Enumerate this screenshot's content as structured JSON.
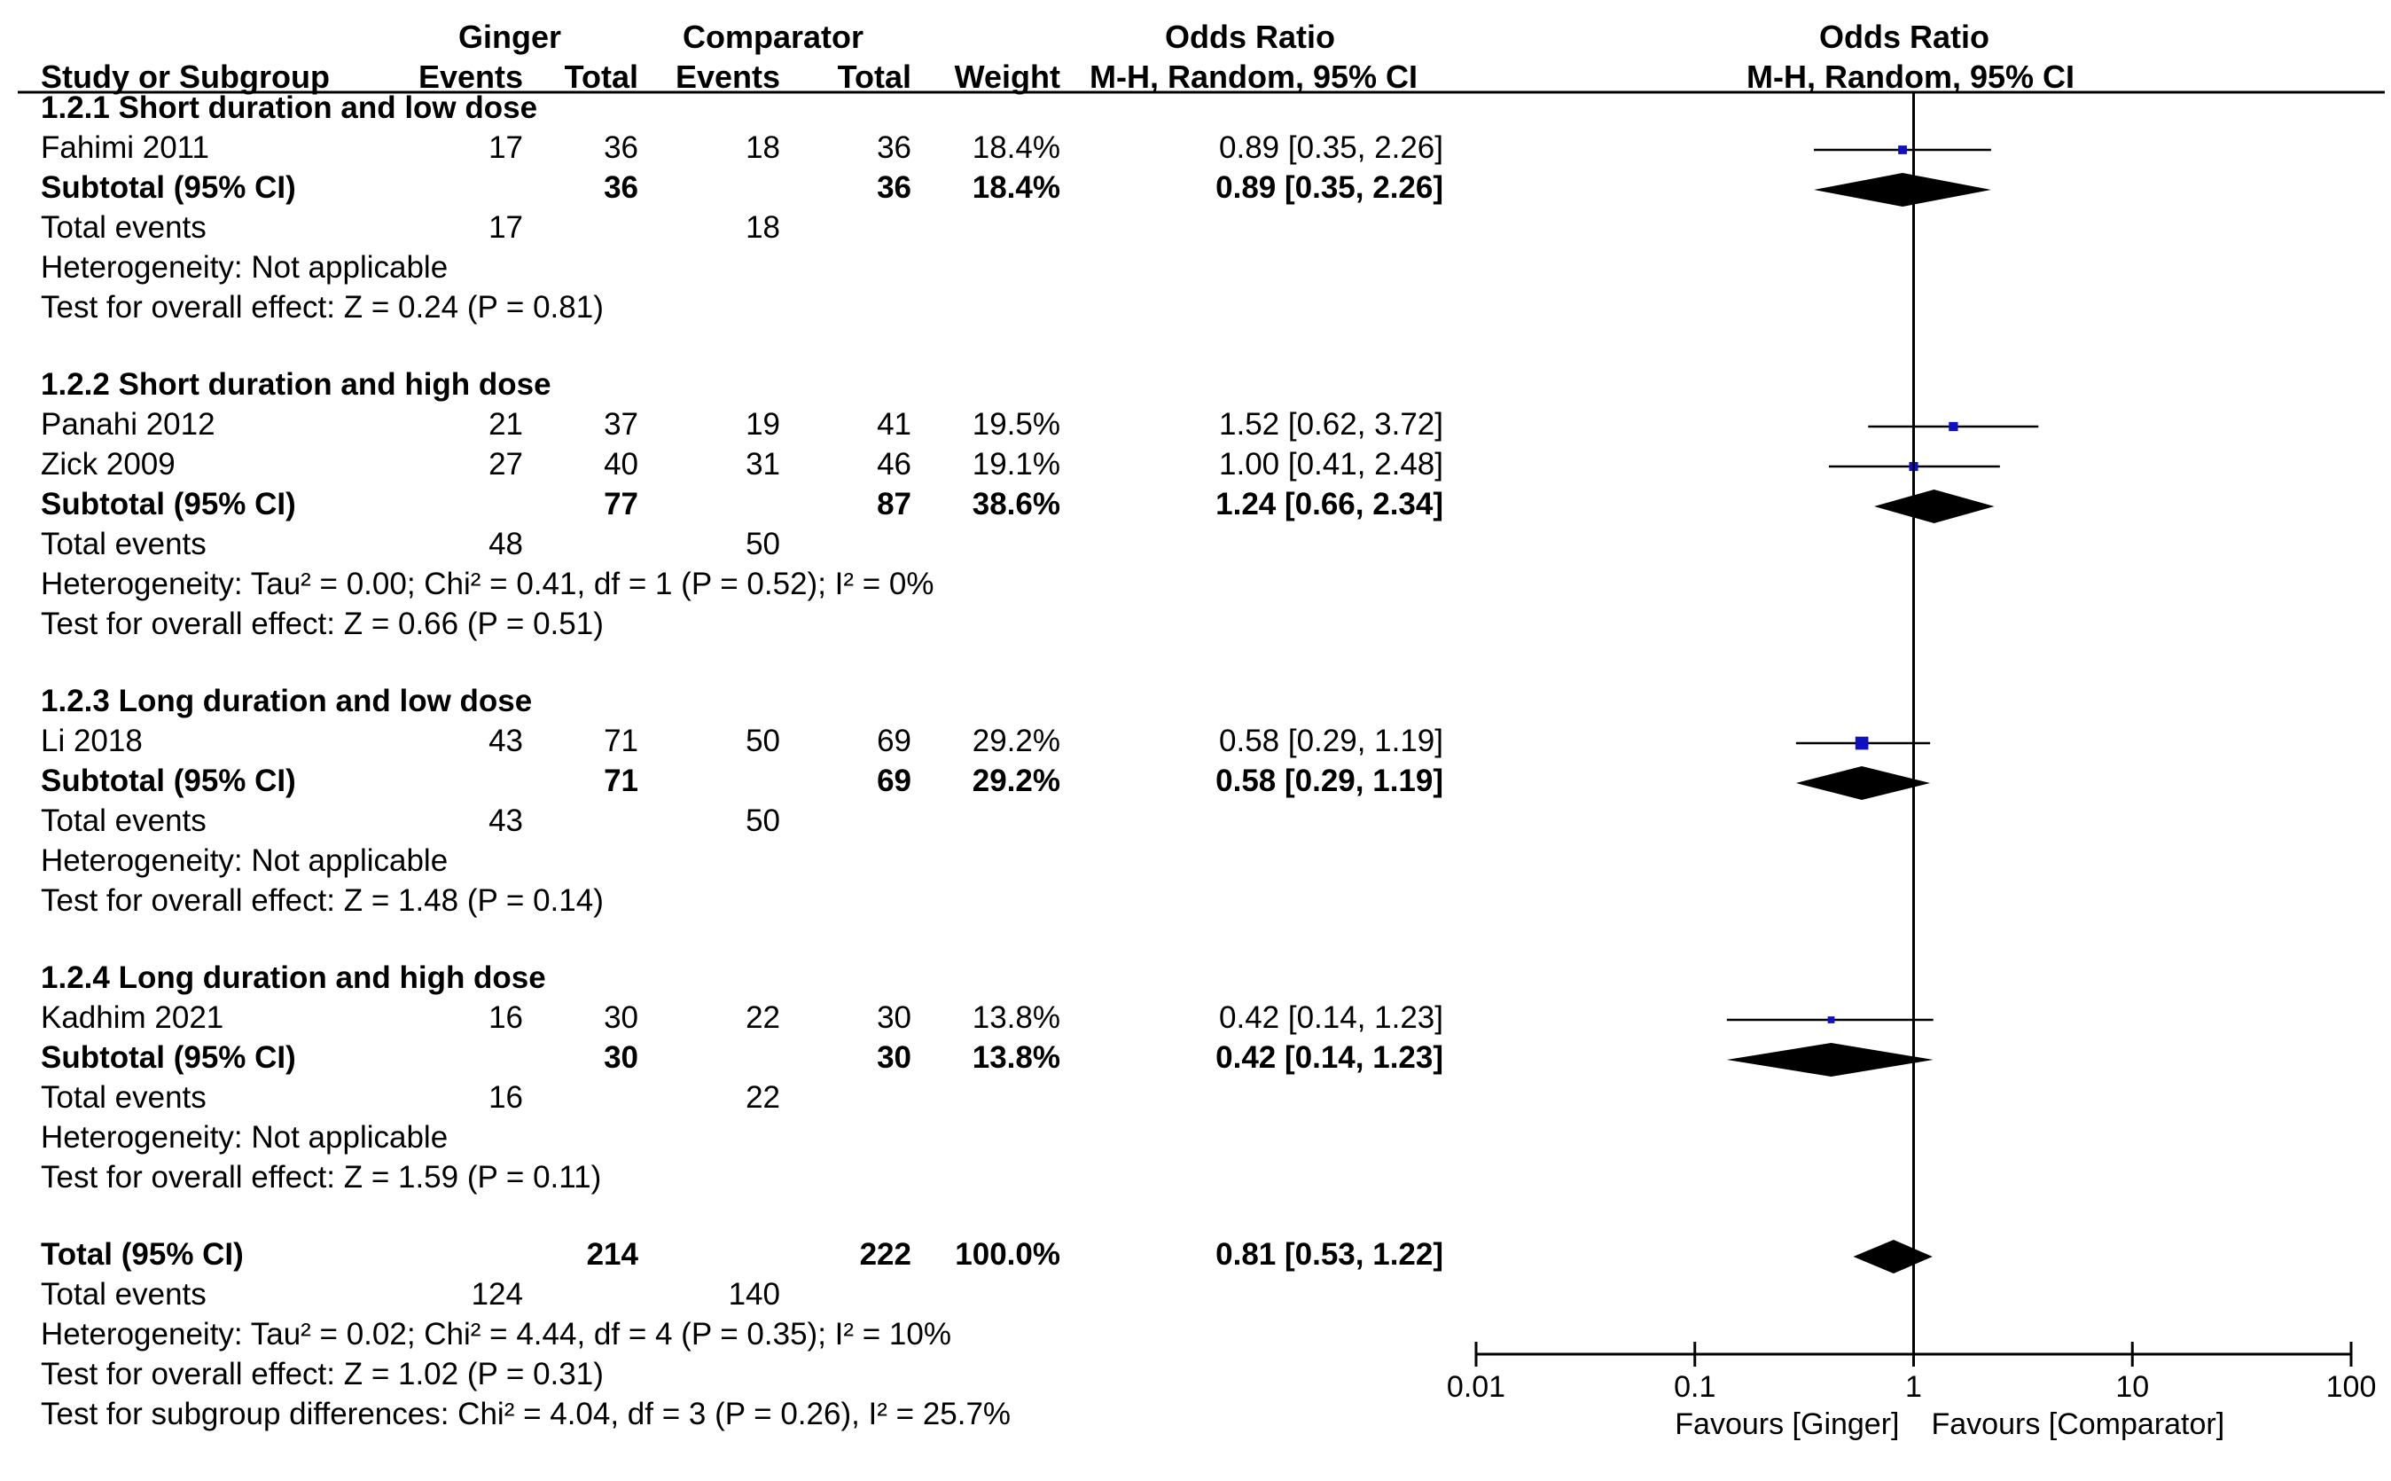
{
  "colors": {
    "marker": "#1010c0",
    "ink": "#000000",
    "background": "#ffffff"
  },
  "header": {
    "group_ginger": "Ginger",
    "group_comparator": "Comparator",
    "or_title": "Odds Ratio",
    "or_method": "M-H, Random, 95% CI",
    "plot_title": "Odds Ratio",
    "plot_method": "M-H, Random, 95% CI",
    "study_col": "Study or Subgroup",
    "events_g": "Events",
    "total_g": "Total",
    "events_c": "Events",
    "total_c": "Total",
    "weight": "Weight"
  },
  "chart_data": {
    "type": "forest",
    "title": "Odds Ratio M-H, Random, 95% CI",
    "scale": "log",
    "xlim": [
      0.01,
      100
    ],
    "ticks": [
      0.01,
      0.1,
      1,
      10,
      100
    ],
    "tick_labels": [
      "0.01",
      "0.1",
      "1",
      "10",
      "100"
    ],
    "null_value": 1,
    "favours_left": "Favours [Ginger]",
    "favours_right": "Favours [Comparator]",
    "subgroups": [
      {
        "title": "1.2.1 Short duration and low dose",
        "studies": [
          {
            "name": "Fahimi 2011",
            "g_events": "17",
            "g_total": "36",
            "c_events": "18",
            "c_total": "36",
            "weight": "18.4%",
            "ci_text": "0.89 [0.35, 2.26]",
            "or": 0.89,
            "lo": 0.35,
            "hi": 2.26,
            "weight_pct": 18.4
          }
        ],
        "subtotal": {
          "label": "Subtotal (95% CI)",
          "g_total": "36",
          "c_total": "36",
          "weight": "18.4%",
          "ci_text": "0.89 [0.35, 2.26]",
          "or": 0.89,
          "lo": 0.35,
          "hi": 2.26
        },
        "total_events": {
          "label": "Total events",
          "g": "17",
          "c": "18"
        },
        "heterogeneity": "Heterogeneity: Not applicable",
        "overall_effect": "Test for overall effect: Z = 0.24 (P = 0.81)"
      },
      {
        "title": "1.2.2 Short duration and high dose",
        "studies": [
          {
            "name": "Panahi 2012",
            "g_events": "21",
            "g_total": "37",
            "c_events": "19",
            "c_total": "41",
            "weight": "19.5%",
            "ci_text": "1.52 [0.62, 3.72]",
            "or": 1.52,
            "lo": 0.62,
            "hi": 3.72,
            "weight_pct": 19.5
          },
          {
            "name": "Zick 2009",
            "g_events": "27",
            "g_total": "40",
            "c_events": "31",
            "c_total": "46",
            "weight": "19.1%",
            "ci_text": "1.00 [0.41, 2.48]",
            "or": 1.0,
            "lo": 0.41,
            "hi": 2.48,
            "weight_pct": 19.1
          }
        ],
        "subtotal": {
          "label": "Subtotal (95% CI)",
          "g_total": "77",
          "c_total": "87",
          "weight": "38.6%",
          "ci_text": "1.24 [0.66, 2.34]",
          "or": 1.24,
          "lo": 0.66,
          "hi": 2.34
        },
        "total_events": {
          "label": "Total events",
          "g": "48",
          "c": "50"
        },
        "heterogeneity": "Heterogeneity: Tau² = 0.00; Chi² = 0.41, df = 1 (P = 0.52); I² = 0%",
        "overall_effect": "Test for overall effect: Z = 0.66 (P = 0.51)"
      },
      {
        "title": "1.2.3 Long duration and low dose",
        "studies": [
          {
            "name": "Li 2018",
            "g_events": "43",
            "g_total": "71",
            "c_events": "50",
            "c_total": "69",
            "weight": "29.2%",
            "ci_text": "0.58 [0.29, 1.19]",
            "or": 0.58,
            "lo": 0.29,
            "hi": 1.19,
            "weight_pct": 29.2
          }
        ],
        "subtotal": {
          "label": "Subtotal (95% CI)",
          "g_total": "71",
          "c_total": "69",
          "weight": "29.2%",
          "ci_text": "0.58 [0.29, 1.19]",
          "or": 0.58,
          "lo": 0.29,
          "hi": 1.19
        },
        "total_events": {
          "label": "Total events",
          "g": "43",
          "c": "50"
        },
        "heterogeneity": "Heterogeneity: Not applicable",
        "overall_effect": "Test for overall effect: Z = 1.48 (P = 0.14)"
      },
      {
        "title": "1.2.4 Long duration and high dose",
        "studies": [
          {
            "name": "Kadhim 2021",
            "g_events": "16",
            "g_total": "30",
            "c_events": "22",
            "c_total": "30",
            "weight": "13.8%",
            "ci_text": "0.42 [0.14, 1.23]",
            "or": 0.42,
            "lo": 0.14,
            "hi": 1.23,
            "weight_pct": 13.8
          }
        ],
        "subtotal": {
          "label": "Subtotal (95% CI)",
          "g_total": "30",
          "c_total": "30",
          "weight": "13.8%",
          "ci_text": "0.42 [0.14, 1.23]",
          "or": 0.42,
          "lo": 0.14,
          "hi": 1.23
        },
        "total_events": {
          "label": "Total events",
          "g": "16",
          "c": "22"
        },
        "heterogeneity": "Heterogeneity: Not applicable",
        "overall_effect": "Test for overall effect: Z = 1.59 (P = 0.11)"
      }
    ],
    "overall": {
      "label": "Total (95% CI)",
      "g_total": "214",
      "c_total": "222",
      "weight": "100.0%",
      "ci_text": "0.81 [0.53, 1.22]",
      "or": 0.81,
      "lo": 0.53,
      "hi": 1.22,
      "total_events": {
        "label": "Total events",
        "g": "124",
        "c": "140"
      },
      "heterogeneity": "Heterogeneity: Tau² = 0.02; Chi² = 4.44, df = 4 (P = 0.35); I² = 10%",
      "overall_effect": "Test for overall effect: Z = 1.02 (P = 0.31)",
      "subgroup_differences": "Test for subgroup differences: Chi² = 4.04, df = 3 (P = 0.26), I² = 25.7%"
    }
  }
}
